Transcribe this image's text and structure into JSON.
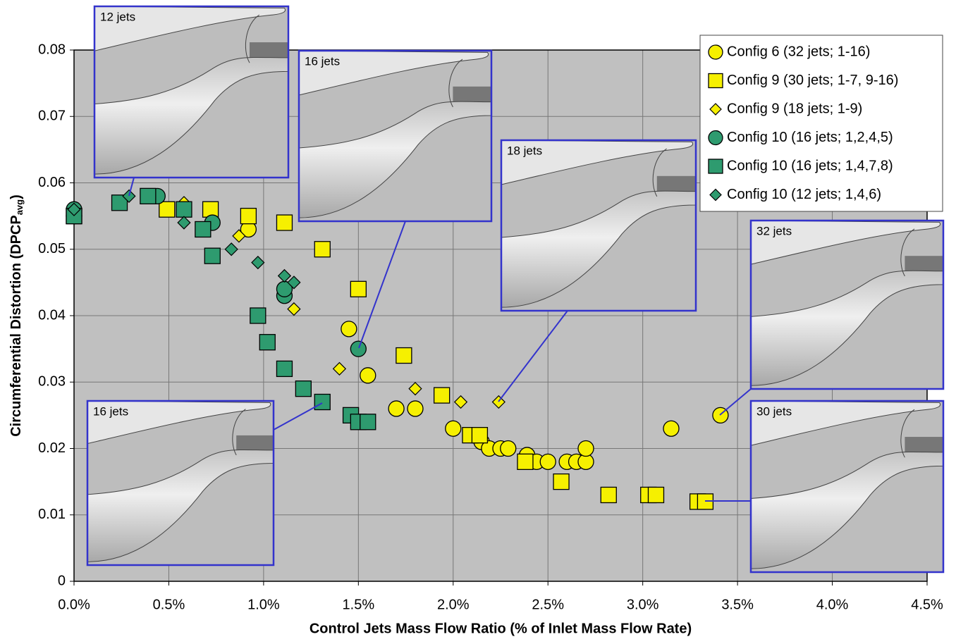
{
  "chart_data": {
    "type": "scatter",
    "xlabel": "Control Jets Mass Flow Ratio (% of Inlet Mass Flow Rate)",
    "ylabel": "Circumferential Distortion (DPCP",
    "ylabel_sub": "avg",
    "ylabel_end": ")",
    "xlim": [
      0,
      4.5
    ],
    "xticks": [
      {
        "value": 0,
        "label": "0.0%"
      },
      {
        "value": 0.5,
        "label": "0.5%"
      },
      {
        "value": 1,
        "label": "1.0%"
      },
      {
        "value": 1.5,
        "label": "1.5%"
      },
      {
        "value": 2,
        "label": "2.0%"
      },
      {
        "value": 2.5,
        "label": "2.5%"
      },
      {
        "value": 3,
        "label": "3.0%"
      },
      {
        "value": 3.5,
        "label": "3.5%"
      },
      {
        "value": 4,
        "label": "4.0%"
      },
      {
        "value": 4.5,
        "label": "4.5%"
      }
    ],
    "ylim": [
      0,
      0.08
    ],
    "yticks": [
      0,
      0.01,
      0.02,
      0.03,
      0.04,
      0.05,
      0.06,
      0.07,
      0.08
    ],
    "grid": true,
    "legend": "upper right",
    "series": [
      {
        "name": "Config 6 (32 jets; 1-16)",
        "color": "#f6f000",
        "marker": "circle",
        "x": [
          0,
          0.92,
          1.45,
          1.55,
          1.7,
          1.8,
          2.0,
          2.11,
          2.15,
          2.19,
          2.25,
          2.29,
          2.39,
          2.44,
          2.5,
          2.6,
          2.65,
          2.7,
          2.7,
          3.15,
          3.41
        ],
        "values": [
          0.055,
          0.053,
          0.038,
          0.031,
          0.026,
          0.026,
          0.023,
          0.022,
          0.021,
          0.02,
          0.02,
          0.02,
          0.019,
          0.018,
          0.018,
          0.018,
          0.018,
          0.018,
          0.02,
          0.023,
          0.025
        ]
      },
      {
        "name": "Config 9 (30 jets; 1-7, 9-16)",
        "color": "#f6f000",
        "marker": "square",
        "x": [
          0,
          0.49,
          0.72,
          0.92,
          1.11,
          1.31,
          1.5,
          1.74,
          1.94,
          2.09,
          2.14,
          2.38,
          2.57,
          2.82,
          3.03,
          3.07,
          3.29,
          3.33
        ],
        "values": [
          0.055,
          0.056,
          0.056,
          0.055,
          0.054,
          0.05,
          0.044,
          0.034,
          0.028,
          0.022,
          0.022,
          0.018,
          0.015,
          0.013,
          0.013,
          0.013,
          0.012,
          0.012
        ]
      },
      {
        "name": "Config 9 (18 jets; 1-9)",
        "color": "#f6f000",
        "marker": "diamond",
        "x": [
          0,
          0.58,
          0.87,
          1.16,
          1.4,
          1.8,
          2.04,
          2.24
        ],
        "values": [
          0.056,
          0.057,
          0.052,
          0.041,
          0.032,
          0.029,
          0.027,
          0.027
        ]
      },
      {
        "name": "Config 10 (16 jets; 1,2,4,5)",
        "color": "#2e9b6f",
        "marker": "circle",
        "x": [
          0,
          0.44,
          0.73,
          1.11,
          1.11,
          1.5
        ],
        "values": [
          0.056,
          0.058,
          0.054,
          0.043,
          0.044,
          0.035
        ]
      },
      {
        "name": "Config 10 (16 jets; 1,4,7,8)",
        "color": "#2e9b6f",
        "marker": "square",
        "x": [
          0,
          0.24,
          0.39,
          0.58,
          0.68,
          0.73,
          0.97,
          1.02,
          1.11,
          1.21,
          1.31,
          1.46,
          1.5,
          1.55
        ],
        "values": [
          0.055,
          0.057,
          0.058,
          0.056,
          0.053,
          0.049,
          0.04,
          0.036,
          0.032,
          0.029,
          0.027,
          0.025,
          0.024,
          0.024
        ]
      },
      {
        "name": "Config 10 (12 jets; 1,4,6)",
        "color": "#2e9b6f",
        "marker": "diamond",
        "x": [
          0,
          0.29,
          0.58,
          0.83,
          0.97,
          1.11,
          1.16
        ],
        "values": [
          0.056,
          0.058,
          0.054,
          0.05,
          0.048,
          0.046,
          0.045
        ]
      }
    ],
    "insets": [
      {
        "label": "12 jets"
      },
      {
        "label": "16 jets"
      },
      {
        "label": "18 jets"
      },
      {
        "label": "32 jets"
      },
      {
        "label": "30 jets"
      },
      {
        "label": "16 jets"
      }
    ]
  }
}
